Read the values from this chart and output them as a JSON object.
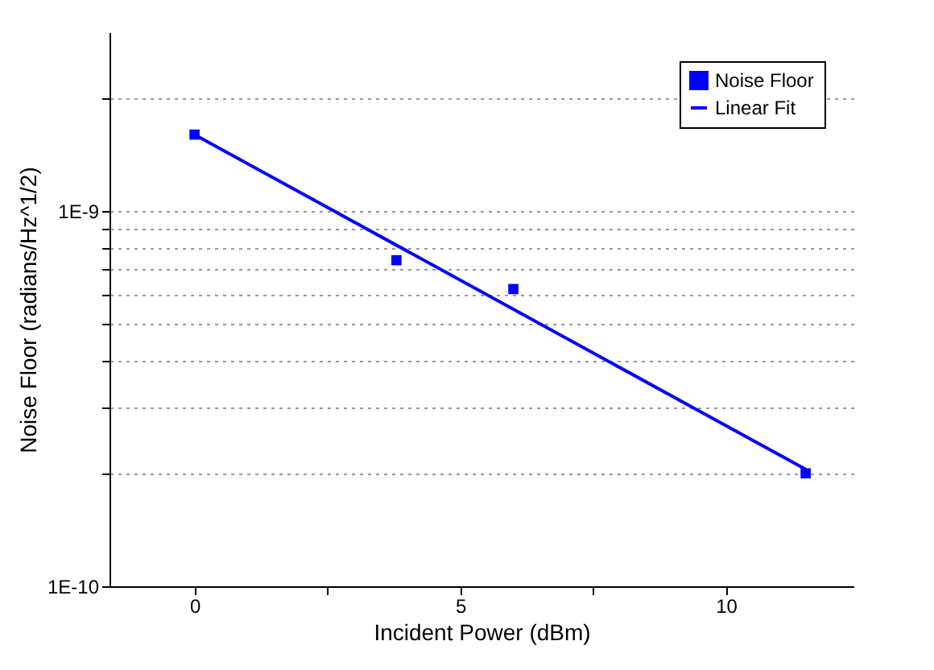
{
  "chart_data": {
    "type": "scatter",
    "xlabel": "Incident Power (dBm)",
    "ylabel": "Noise Floor (radians/Hz^1/2)",
    "series": [
      {
        "name": "Noise Floor",
        "color": "#0000ff",
        "x": [
          0,
          3.8,
          6,
          11.5
        ],
        "values": [
          1.6e-09,
          7.4e-10,
          6.2e-10,
          2e-10
        ],
        "marker": "square"
      },
      {
        "name": "Linear Fit",
        "type": "line",
        "color": "#0000ff",
        "x": [
          0,
          11.5
        ],
        "values": [
          1.6e-09,
          2.05e-10
        ],
        "marker": "none",
        "line_style": "solid"
      }
    ],
    "xlim": [
      -1.6,
      12.4
    ],
    "xticks": [
      0,
      {
        "value": 2.5,
        "label": null
      },
      5,
      {
        "value": 7.5,
        "label": null
      },
      10
    ],
    "ylim": [
      1e-10,
      3e-09
    ],
    "log": "y",
    "yticks": [
      {
        "value": 1e-10,
        "label": "1E-10"
      },
      {
        "value": 2e-10,
        "label": null
      },
      {
        "value": 3e-10,
        "label": null
      },
      {
        "value": 4e-10,
        "label": null
      },
      {
        "value": 5e-10,
        "label": null
      },
      {
        "value": 6e-10,
        "label": null
      },
      {
        "value": 7e-10,
        "label": null
      },
      {
        "value": 8e-10,
        "label": null
      },
      {
        "value": 9e-10,
        "label": null
      },
      {
        "value": 1e-09,
        "label": "1E-9"
      },
      {
        "value": 2e-09,
        "label": null
      }
    ],
    "grid": "y",
    "legend": "top right"
  }
}
